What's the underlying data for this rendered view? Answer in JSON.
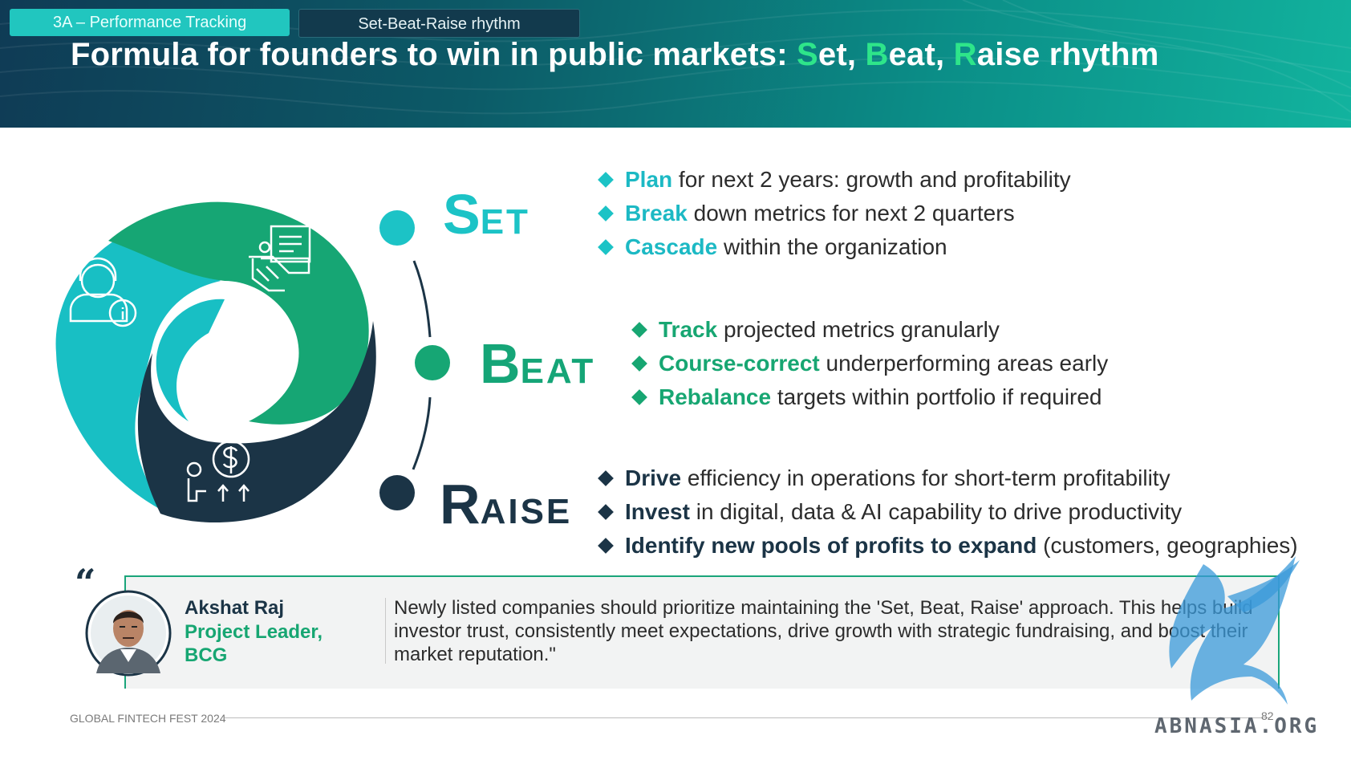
{
  "header": {
    "tab_active": "3A – Performance Tracking",
    "tab_secondary": "Set-Beat-Raise rhythm",
    "title_prefix": "Formula for founders to win in public markets: ",
    "title_s": "S",
    "title_set_rest": "et, ",
    "title_b": "B",
    "title_beat_rest": "eat, ",
    "title_r": "R",
    "title_raise_rest": "aise rhythm"
  },
  "stages": {
    "set": {
      "initial": "S",
      "rest": "ET",
      "color": "#1cc3c6"
    },
    "beat": {
      "initial": "B",
      "rest": "EAT",
      "color": "#15a577"
    },
    "raise": {
      "initial": "R",
      "rest": "AISE",
      "color": "#1b3446"
    }
  },
  "set_bullets": [
    {
      "key": "Plan",
      "rest": " for next 2 years: growth and profitability"
    },
    {
      "key": "Break",
      "rest": " down metrics for next 2 quarters"
    },
    {
      "key": "Cascade",
      "rest": " within the organization"
    }
  ],
  "beat_bullets": [
    {
      "key": "Track",
      "rest": " projected metrics granularly"
    },
    {
      "key": "Course-correct",
      "rest": " underperforming areas early"
    },
    {
      "key": "Rebalance",
      "rest": " targets within portfolio if required"
    }
  ],
  "raise_bullets": [
    {
      "key": "Drive",
      "rest": " efficiency in operations for short-term profitability"
    },
    {
      "key": "Invest",
      "rest": " in digital, data & AI capability to drive productivity"
    },
    {
      "key": "Identify new pools of profits to expand",
      "rest": " (customers, geographies)"
    }
  ],
  "icons": [
    "support-agent-icon",
    "handshake-document-icon",
    "person-dollar-growth-icon",
    "quote-icon",
    "person-avatar"
  ],
  "quote": {
    "mark": "“",
    "name": "Akshat Raj",
    "role_line1": "Project Leader,",
    "role_line2": "BCG",
    "text": "Newly listed companies should prioritize maintaining the 'Set, Beat, Raise' approach. This helps build investor trust, consistently meet expectations, drive growth with strategic fundraising, and boost their market reputation.\""
  },
  "footer": {
    "event": "GLOBAL FINTECH FEST 2024",
    "page": "82"
  },
  "watermark": "ABNASIA.ORG",
  "colors": {
    "teal": "#1cc3c6",
    "green": "#17a672",
    "navy": "#1b3446",
    "title_highlight": "#2ee58a"
  }
}
